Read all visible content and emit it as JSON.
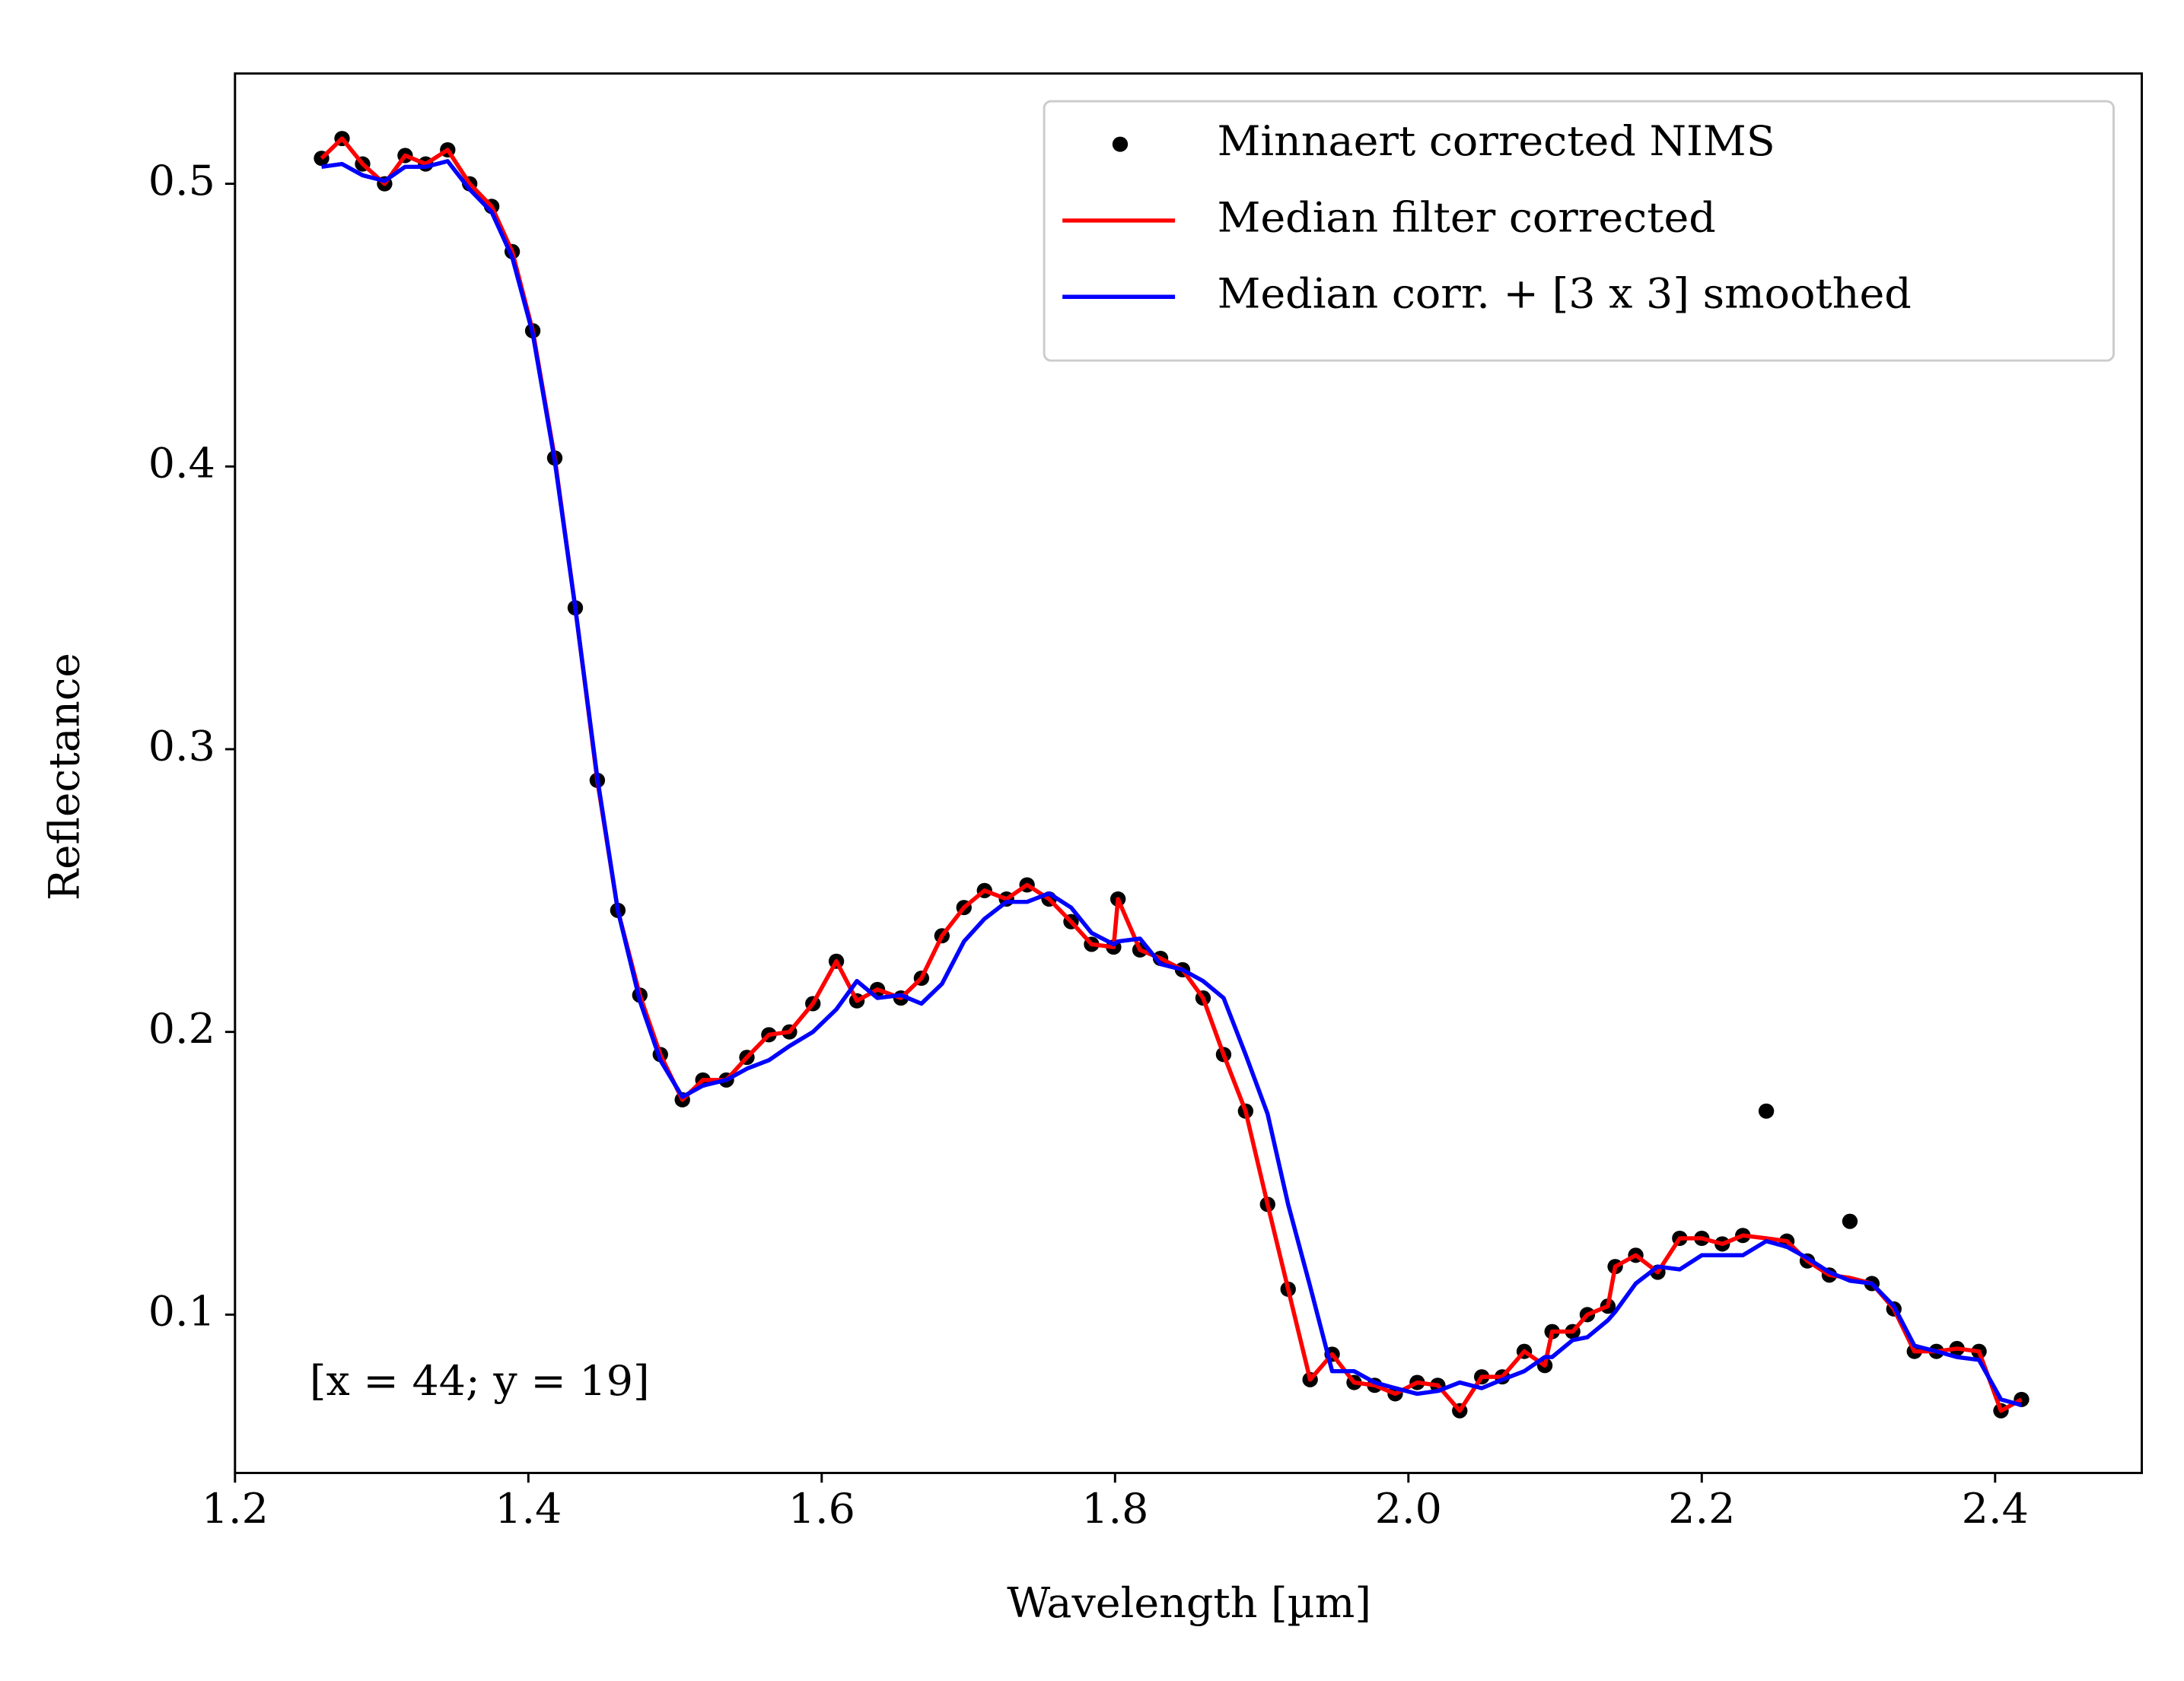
{
  "chart_data": {
    "type": "line",
    "xlabel": "Wavelength [µm]",
    "ylabel": "Reflectance",
    "annotation": "[x = 44; y = 19]",
    "xlim": [
      1.2,
      2.5
    ],
    "ylim": [
      0.044,
      0.539
    ],
    "xticks": [
      1.2,
      1.4,
      1.6,
      1.8,
      {
        "value": 2,
        "label": "2.0"
      },
      2.2,
      2.4
    ],
    "yticks": [
      0.1,
      0.2,
      0.3,
      0.4,
      0.5
    ],
    "legend": "upper right",
    "x": [
      1.259,
      1.273,
      1.287,
      1.302,
      1.316,
      1.33,
      1.345,
      1.36,
      1.375,
      1.389,
      1.403,
      1.418,
      1.432,
      1.447,
      1.461,
      1.476,
      1.49,
      1.505,
      1.519,
      1.535,
      1.549,
      1.564,
      1.578,
      1.594,
      1.61,
      1.624,
      1.638,
      1.654,
      1.668,
      1.682,
      1.697,
      1.711,
      1.726,
      1.74,
      1.755,
      1.77,
      1.784,
      1.799,
      1.802,
      1.817,
      1.831,
      1.846,
      1.86,
      1.874,
      1.889,
      1.904,
      1.918,
      1.933,
      1.948,
      1.963,
      1.977,
      1.991,
      2.006,
      2.02,
      2.035,
      2.05,
      2.064,
      2.079,
      2.093,
      2.098,
      2.112,
      2.122,
      2.136,
      2.141,
      2.155,
      2.17,
      2.185,
      2.2,
      2.214,
      2.228,
      2.244,
      2.258,
      2.272,
      2.287,
      2.301,
      2.316,
      2.331,
      2.345,
      2.36,
      2.374,
      2.389,
      2.404,
      2.418
    ],
    "series": [
      {
        "name": "Minnaert corrected NIMS",
        "color": "#000000",
        "mode": "markers",
        "values": [
          0.509,
          0.516,
          0.507,
          0.5,
          0.51,
          0.507,
          0.512,
          0.5,
          0.492,
          0.476,
          0.448,
          0.403,
          0.35,
          0.289,
          0.243,
          0.213,
          0.192,
          0.176,
          0.183,
          0.183,
          0.191,
          0.199,
          0.2,
          0.21,
          0.225,
          0.211,
          0.215,
          0.212,
          0.219,
          0.234,
          0.244,
          0.25,
          0.247,
          0.252,
          0.247,
          0.239,
          0.231,
          0.23,
          0.247,
          0.229,
          0.226,
          0.222,
          0.212,
          0.192,
          0.172,
          0.139,
          0.109,
          0.077,
          0.086,
          0.076,
          0.075,
          0.072,
          0.076,
          0.075,
          0.066,
          0.078,
          0.078,
          0.087,
          0.082,
          0.094,
          0.094,
          0.1,
          0.103,
          0.117,
          0.121,
          0.115,
          0.127,
          0.127,
          0.125,
          0.128,
          0.172,
          0.126,
          0.119,
          0.114,
          0.133,
          0.111,
          0.102,
          0.087,
          0.087,
          0.088,
          0.087,
          0.066,
          0.07
        ]
      },
      {
        "name": "Median filter corrected",
        "color": "#ff0000",
        "mode": "line",
        "values": [
          0.509,
          0.516,
          0.507,
          0.5,
          0.51,
          0.507,
          0.512,
          0.5,
          0.492,
          0.476,
          0.448,
          0.403,
          0.35,
          0.289,
          0.243,
          0.213,
          0.192,
          0.176,
          0.183,
          0.183,
          0.191,
          0.199,
          0.2,
          0.21,
          0.225,
          0.211,
          0.215,
          0.212,
          0.219,
          0.234,
          0.244,
          0.25,
          0.247,
          0.252,
          0.247,
          0.239,
          0.231,
          0.23,
          0.247,
          0.229,
          0.226,
          0.222,
          0.212,
          0.192,
          0.172,
          0.139,
          0.109,
          0.077,
          0.086,
          0.076,
          0.075,
          0.072,
          0.076,
          0.075,
          0.066,
          0.078,
          0.078,
          0.087,
          0.082,
          0.094,
          0.094,
          0.1,
          0.103,
          0.117,
          0.121,
          0.115,
          0.127,
          0.127,
          0.125,
          0.128,
          0.127,
          0.126,
          0.119,
          0.114,
          0.113,
          0.111,
          0.102,
          0.087,
          0.087,
          0.088,
          0.087,
          0.066,
          0.07
        ]
      },
      {
        "name": "Median corr. + [3 x 3] smoothed",
        "color": "#0000ff",
        "mode": "line",
        "values": [
          0.506,
          0.507,
          0.503,
          0.501,
          0.506,
          0.506,
          0.508,
          0.498,
          0.49,
          0.474,
          0.447,
          0.402,
          0.35,
          0.29,
          0.243,
          0.211,
          0.19,
          0.177,
          0.181,
          0.183,
          0.187,
          0.19,
          0.195,
          0.2,
          0.208,
          0.218,
          0.212,
          0.213,
          0.21,
          0.217,
          0.232,
          0.24,
          0.246,
          0.246,
          0.249,
          0.244,
          0.235,
          0.231,
          0.232,
          0.233,
          0.224,
          0.222,
          0.218,
          0.212,
          0.192,
          0.171,
          0.139,
          0.11,
          0.08,
          0.08,
          0.076,
          0.074,
          0.072,
          0.073,
          0.076,
          0.074,
          0.077,
          0.08,
          0.085,
          0.085,
          0.091,
          0.092,
          0.098,
          0.101,
          0.111,
          0.117,
          0.116,
          0.121,
          0.121,
          0.121,
          0.126,
          0.124,
          0.12,
          0.115,
          0.112,
          0.111,
          0.103,
          0.089,
          0.087,
          0.085,
          0.084,
          0.07,
          0.068
        ]
      }
    ]
  }
}
